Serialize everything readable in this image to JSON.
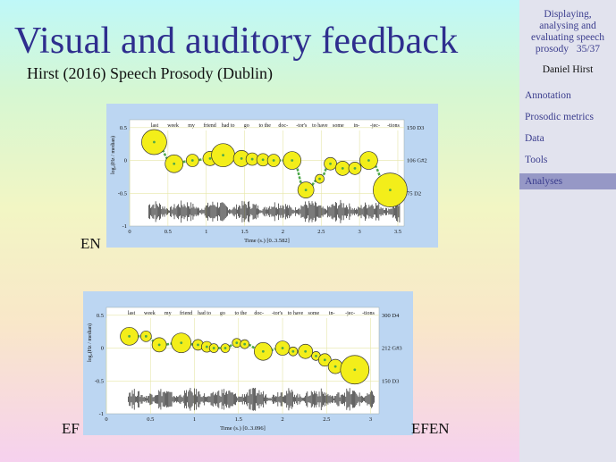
{
  "slide": {
    "title": "Visual and auditory feedback",
    "subtitle": "Hirst (2016) Speech Prosody (Dublin)",
    "labels": {
      "en": "EN",
      "ef": "EF",
      "efen": "EFEN"
    }
  },
  "sidebar": {
    "header_lines": [
      "Displaying,",
      "analysing and",
      "evaluating speech"
    ],
    "header_last": "prosody",
    "page": "35/37",
    "author": "Daniel Hirst",
    "items": [
      {
        "label": "Annotation",
        "active": false
      },
      {
        "label": "Prosodic metrics",
        "active": false
      },
      {
        "label": "Data",
        "active": false
      },
      {
        "label": "Tools",
        "active": false
      },
      {
        "label": "Analyses",
        "active": true
      }
    ]
  },
  "chart_data": [
    {
      "type": "scatter",
      "syllables": [
        "last",
        "week",
        "my",
        "friend",
        "had to",
        "go",
        "to the",
        "doc-",
        "-tor's",
        "to have",
        "some",
        "in-",
        "-jec-",
        "-tions"
      ],
      "ylabel": "log₂(Hz / median)",
      "xlabel": "Time (s.) [0..3.582]",
      "x_ticks": [
        "0",
        "0.5",
        "1",
        "1.5",
        "2",
        "2.5",
        "3",
        "3.5"
      ],
      "y_ticks": [
        "0.5",
        "0",
        "-0.5",
        "-1"
      ],
      "right_labels": [
        "150 D3",
        "106 G#2",
        "75 D2"
      ],
      "xlim": [
        0,
        3.582
      ],
      "ylim": [
        -1,
        0.62
      ],
      "points": [
        {
          "x": 0.32,
          "y": 0.28,
          "size": 14
        },
        {
          "x": 0.58,
          "y": -0.05,
          "size": 10
        },
        {
          "x": 0.82,
          "y": 0.0,
          "size": 7
        },
        {
          "x": 1.05,
          "y": 0.03,
          "size": 8
        },
        {
          "x": 1.22,
          "y": 0.08,
          "size": 13
        },
        {
          "x": 1.46,
          "y": 0.03,
          "size": 9
        },
        {
          "x": 1.6,
          "y": 0.02,
          "size": 7
        },
        {
          "x": 1.74,
          "y": 0.01,
          "size": 7
        },
        {
          "x": 1.88,
          "y": 0.0,
          "size": 7
        },
        {
          "x": 2.12,
          "y": 0.0,
          "size": 10
        },
        {
          "x": 2.3,
          "y": -0.45,
          "size": 9
        },
        {
          "x": 2.48,
          "y": -0.28,
          "size": 5
        },
        {
          "x": 2.62,
          "y": -0.05,
          "size": 7
        },
        {
          "x": 2.78,
          "y": -0.12,
          "size": 8
        },
        {
          "x": 2.94,
          "y": -0.12,
          "size": 7
        },
        {
          "x": 3.12,
          "y": 0.0,
          "size": 10
        },
        {
          "x": 3.4,
          "y": -0.45,
          "size": 19
        }
      ]
    },
    {
      "type": "scatter",
      "syllables": [
        "last",
        "week",
        "my",
        "friend",
        "had to",
        "go",
        "to the",
        "doc-",
        "-tor's",
        "to have",
        "some",
        "in-",
        "-jec-",
        "-tions"
      ],
      "ylabel": "log₂(Hz / median)",
      "xlabel": "Time (s.) [0..3.096]",
      "x_ticks": [
        "0",
        "0.5",
        "1",
        "1.5",
        "2",
        "2.5",
        "3"
      ],
      "y_ticks": [
        "0.5",
        "0",
        "-0.5",
        "-1"
      ],
      "right_labels": [
        "300 D4",
        "212 G#3",
        "150 D3"
      ],
      "xlim": [
        0,
        3.096
      ],
      "ylim": [
        -1,
        0.62
      ],
      "points": [
        {
          "x": 0.26,
          "y": 0.18,
          "size": 10
        },
        {
          "x": 0.45,
          "y": 0.18,
          "size": 6
        },
        {
          "x": 0.6,
          "y": 0.05,
          "size": 8
        },
        {
          "x": 0.85,
          "y": 0.08,
          "size": 11
        },
        {
          "x": 1.04,
          "y": 0.05,
          "size": 6
        },
        {
          "x": 1.14,
          "y": 0.02,
          "size": 6
        },
        {
          "x": 1.22,
          "y": 0.0,
          "size": 5
        },
        {
          "x": 1.35,
          "y": 0.0,
          "size": 5
        },
        {
          "x": 1.48,
          "y": 0.08,
          "size": 5
        },
        {
          "x": 1.57,
          "y": 0.06,
          "size": 5
        },
        {
          "x": 1.78,
          "y": -0.05,
          "size": 10
        },
        {
          "x": 2.0,
          "y": 0.0,
          "size": 8
        },
        {
          "x": 2.12,
          "y": -0.05,
          "size": 5
        },
        {
          "x": 2.38,
          "y": -0.12,
          "size": 5
        },
        {
          "x": 2.26,
          "y": -0.05,
          "size": 8
        },
        {
          "x": 2.48,
          "y": -0.18,
          "size": 7
        },
        {
          "x": 2.6,
          "y": -0.28,
          "size": 8
        },
        {
          "x": 2.82,
          "y": -0.33,
          "size": 16
        }
      ]
    }
  ]
}
